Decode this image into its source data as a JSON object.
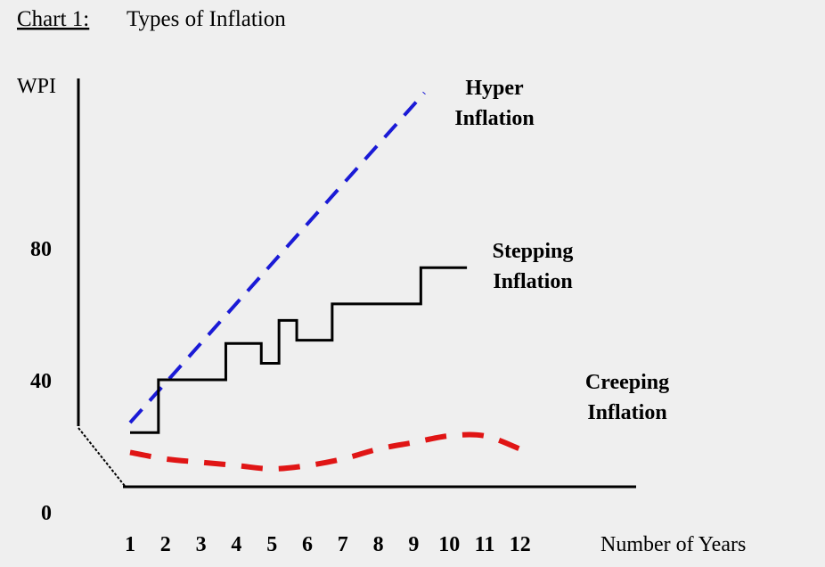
{
  "chart_data": {
    "type": "line",
    "title_prefix": "Chart 1:",
    "title": "Types of Inflation",
    "ylabel": "WPI",
    "xlabel": "Number of Years",
    "x_ticks": [
      "1",
      "2",
      "3",
      "4",
      "5",
      "6",
      "7",
      "8",
      "9",
      "10",
      "11",
      "12"
    ],
    "y_ticks": [
      "0",
      "40",
      "80"
    ],
    "xlim": [
      1,
      12
    ],
    "ylim": [
      0,
      120
    ],
    "series": [
      {
        "name_lines": [
          "Hyper",
          "Inflation"
        ],
        "color": "#1a1ad6",
        "style": "dashed",
        "x": [
          1,
          9.3
        ],
        "y": [
          27,
          127
        ]
      },
      {
        "name_lines": [
          "Stepping",
          "Inflation"
        ],
        "color": "#000000",
        "style": "step",
        "x": [
          1,
          1.8,
          1.8,
          3.7,
          3.7,
          4.7,
          4.7,
          5.2,
          5.2,
          5.7,
          5.7,
          6.7,
          6.7,
          9.2,
          9.2,
          10.5
        ],
        "y": [
          24,
          24,
          40,
          40,
          51,
          51,
          45,
          45,
          58,
          58,
          52,
          52,
          63,
          63,
          74,
          74
        ]
      },
      {
        "name_lines": [
          "Creeping",
          "Inflation"
        ],
        "color": "#e01515",
        "style": "dashed",
        "x": [
          1,
          2,
          3,
          4,
          5,
          6,
          7,
          8,
          9,
          10,
          11,
          12
        ],
        "y": [
          18,
          16,
          15,
          14,
          13,
          14,
          16,
          19,
          21,
          23,
          23,
          19
        ]
      }
    ]
  }
}
